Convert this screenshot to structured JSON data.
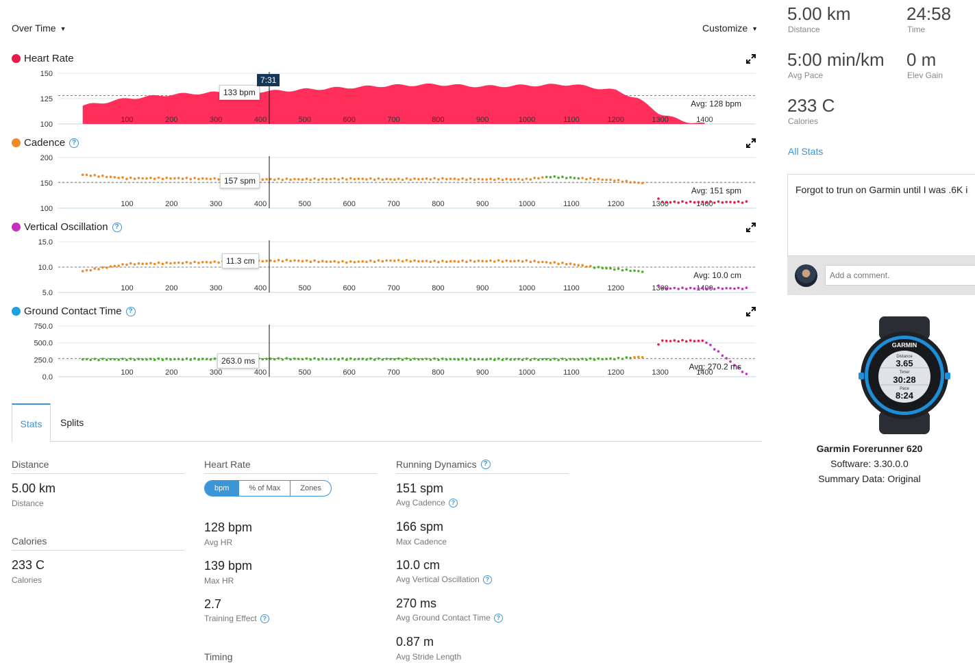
{
  "toolbar": {
    "view": "Over Time",
    "customize": "Customize"
  },
  "charts": {
    "hr": {
      "title": "Heart Rate",
      "color": "#ff2e5a",
      "y_ticks": [
        "150",
        "125",
        "100"
      ],
      "x_ticks": [
        "100",
        "200",
        "300",
        "400",
        "500",
        "600",
        "700",
        "800",
        "900",
        "1000",
        "1100",
        "1200",
        "1300",
        "1400"
      ],
      "avg": "Avg: 128 bpm",
      "hover": "133 bpm",
      "time": "7:31"
    },
    "cadence": {
      "title": "Cadence",
      "color": "#f08a24",
      "y_ticks": [
        "200",
        "150",
        "100"
      ],
      "x_ticks": [
        "100",
        "200",
        "300",
        "400",
        "500",
        "600",
        "700",
        "800",
        "900",
        "1000",
        "1100",
        "1200",
        "1300",
        "1400"
      ],
      "avg": "Avg: 151 spm",
      "hover": "157 spm"
    },
    "vo": {
      "title": "Vertical Oscillation",
      "color": "#c42fbf",
      "y_ticks": [
        "15.0",
        "10.0",
        "5.0"
      ],
      "x_ticks": [
        "100",
        "200",
        "300",
        "400",
        "500",
        "600",
        "700",
        "800",
        "900",
        "1000",
        "1100",
        "1200",
        "1300",
        "1400"
      ],
      "avg": "Avg: 10.0 cm",
      "hover": "11.3 cm"
    },
    "gct": {
      "title": "Ground Contact Time",
      "color": "#1da1e2",
      "y_ticks": [
        "750.0",
        "500.0",
        "250.0",
        "0.0"
      ],
      "x_ticks": [
        "100",
        "200",
        "300",
        "400",
        "500",
        "600",
        "700",
        "800",
        "900",
        "1000",
        "1100",
        "1200",
        "1300",
        "1400"
      ],
      "avg": "Avg: 270.2 ms",
      "hover": "263.0 ms"
    }
  },
  "chart_data": [
    {
      "type": "area",
      "title": "Heart Rate",
      "x": [
        0,
        100,
        200,
        300,
        400,
        463,
        500,
        600,
        700,
        800,
        900,
        1000,
        1100,
        1200,
        1250,
        1300,
        1350,
        1400
      ],
      "values": [
        118,
        125,
        129,
        131,
        132,
        133,
        134,
        136,
        138,
        139,
        137,
        138,
        139,
        133,
        125,
        110,
        103,
        100
      ],
      "ylim": [
        100,
        150
      ],
      "avg": 128
    },
    {
      "type": "scatter",
      "title": "Cadence",
      "x": [
        0,
        100,
        200,
        300,
        400,
        463,
        500,
        600,
        700,
        800,
        900,
        1000,
        1050,
        1100,
        1200,
        1250,
        1280,
        1300,
        1400,
        1500
      ],
      "values": [
        166,
        159,
        159,
        158,
        157,
        157,
        157,
        158,
        157,
        158,
        157,
        157,
        162,
        160,
        155,
        150,
        151,
        112,
        112,
        112
      ],
      "ylim": [
        100,
        200
      ],
      "avg": 151
    },
    {
      "type": "scatter",
      "title": "Vertical Oscillation",
      "x": [
        0,
        100,
        200,
        300,
        400,
        463,
        500,
        600,
        700,
        800,
        900,
        1000,
        1100,
        1150,
        1200,
        1250,
        1280,
        1300,
        1400,
        1500
      ],
      "values": [
        9.2,
        10.6,
        10.8,
        11.0,
        11.2,
        11.3,
        11.2,
        11.0,
        11.3,
        11.1,
        11.2,
        11.2,
        10.6,
        10.0,
        9.6,
        9.2,
        9.0,
        5.8,
        5.8,
        5.8
      ],
      "ylim": [
        5,
        15
      ],
      "avg": 10.0
    },
    {
      "type": "scatter",
      "title": "Ground Contact Time",
      "x": [
        0,
        100,
        200,
        300,
        400,
        463,
        500,
        600,
        700,
        800,
        900,
        1000,
        1100,
        1200,
        1250,
        1280,
        1300,
        1400,
        1500
      ],
      "values": [
        255,
        256,
        258,
        260,
        262,
        263,
        262,
        260,
        260,
        258,
        257,
        256,
        255,
        265,
        290,
        300,
        530,
        530,
        0
      ],
      "ylim": [
        0,
        750
      ],
      "avg": 270.2
    }
  ],
  "tabs": {
    "stats": "Stats",
    "splits": "Splits"
  },
  "stats": {
    "distance": {
      "title": "Distance",
      "value": "5.00 km",
      "label": "Distance"
    },
    "calories": {
      "title": "Calories",
      "value": "233 C",
      "label": "Calories"
    },
    "heart_rate": {
      "title": "Heart Rate",
      "toggle": [
        "bpm",
        "% of Max",
        "Zones"
      ],
      "avg": "128 bpm",
      "avg_label": "Avg HR",
      "max": "139 bpm",
      "max_label": "Max HR",
      "te": "2.7",
      "te_label": "Training Effect"
    },
    "timing": {
      "title": "Timing"
    },
    "dynamics": {
      "title": "Running Dynamics",
      "cadence": "151 spm",
      "cadence_label": "Avg Cadence",
      "max_cadence": "166 spm",
      "max_cadence_label": "Max Cadence",
      "vo": "10.0 cm",
      "vo_label": "Avg Vertical Oscillation",
      "gct": "270 ms",
      "gct_label": "Avg Ground Contact Time",
      "stride": "0.87 m",
      "stride_label": "Avg Stride Length"
    }
  },
  "summary": {
    "distance": "5.00 km",
    "distance_label": "Distance",
    "time": "24:58",
    "time_label": "Time",
    "pace": "5:00 min/km",
    "pace_label": "Avg Pace",
    "elev": "0 m",
    "elev_label": "Elev Gain",
    "calories": "233 C",
    "calories_label": "Calories",
    "all_stats": "All Stats"
  },
  "notes": {
    "text": "Forgot to trun on Garmin until I was .6K i"
  },
  "comment": {
    "placeholder": "Add a comment."
  },
  "device": {
    "name": "Garmin Forerunner 620",
    "software": "Software: 3.30.0.0",
    "summary_data": "Summary Data: Original",
    "watch_brand": "GARMIN",
    "watch_distance_label": "Distance",
    "watch_distance": "3.65",
    "watch_timer_label": "Timer",
    "watch_timer": "30:28",
    "watch_pace_label": "Pace",
    "watch_pace": "8:24"
  },
  "colors": {
    "accent": "#3b95d6",
    "hr": "#ff2e5a",
    "cadence_orange": "#f08a24",
    "green": "#4caf2a",
    "magenta": "#c42fbf",
    "red": "#e8194b",
    "blue": "#1da1e2"
  }
}
